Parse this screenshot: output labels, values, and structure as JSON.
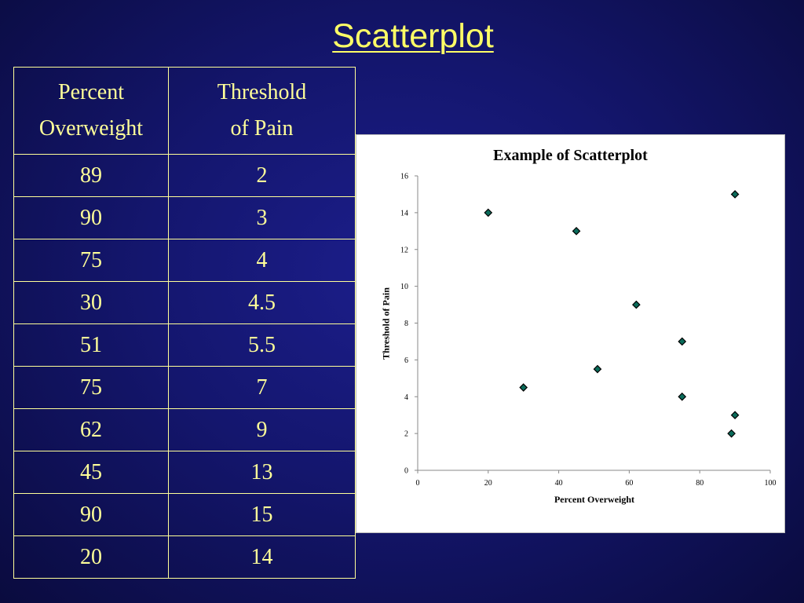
{
  "slide": {
    "title": "Scatterplot"
  },
  "table": {
    "headers": [
      "Percent Overweight",
      "Threshold of Pain"
    ],
    "header_lines": [
      [
        "Percent",
        "Overweight"
      ],
      [
        "Threshold",
        "of Pain"
      ]
    ],
    "rows": [
      [
        "89",
        "2"
      ],
      [
        "90",
        "3"
      ],
      [
        "75",
        "4"
      ],
      [
        "30",
        "4.5"
      ],
      [
        "51",
        "5.5"
      ],
      [
        "75",
        "7"
      ],
      [
        "62",
        "9"
      ],
      [
        "45",
        "13"
      ],
      [
        "90",
        "15"
      ],
      [
        "20",
        "14"
      ]
    ]
  },
  "chart_data": {
    "type": "scatter",
    "title": "Example of Scatterplot",
    "xlabel": "Percent Overweight",
    "ylabel": "Threshold of Pain",
    "xlim": [
      0,
      100
    ],
    "ylim": [
      0,
      16
    ],
    "xticks": [
      0,
      20,
      40,
      60,
      80,
      100
    ],
    "yticks": [
      0,
      2,
      4,
      6,
      8,
      10,
      12,
      14,
      16
    ],
    "grid": false,
    "legend": "none",
    "marker": "diamond",
    "marker_color": "#0a6b5a",
    "points": [
      {
        "x": 89,
        "y": 2
      },
      {
        "x": 90,
        "y": 3
      },
      {
        "x": 75,
        "y": 4
      },
      {
        "x": 30,
        "y": 4.5
      },
      {
        "x": 51,
        "y": 5.5
      },
      {
        "x": 75,
        "y": 7
      },
      {
        "x": 62,
        "y": 9
      },
      {
        "x": 45,
        "y": 13
      },
      {
        "x": 90,
        "y": 15
      },
      {
        "x": 20,
        "y": 14
      }
    ]
  },
  "colors": {
    "background": "#14166e",
    "title_text": "#ffff66",
    "table_text": "#ffff99"
  }
}
